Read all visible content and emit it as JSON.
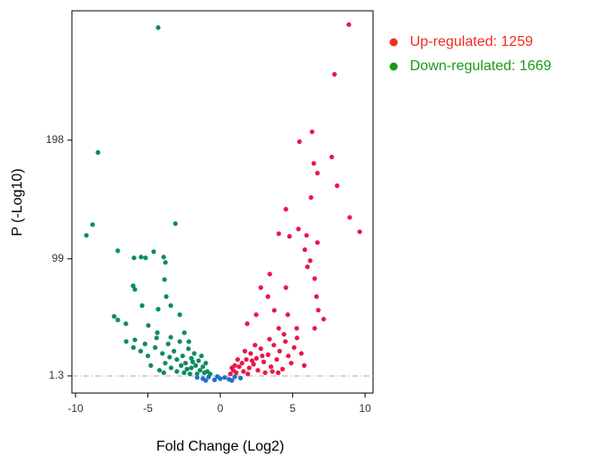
{
  "chart_data": {
    "type": "scatter",
    "x_label": "Fold Change (Log2)",
    "y_label": "P (-Log10)",
    "xlim": [
      -10.25,
      10.55
    ],
    "ylim": [
      -13,
      306
    ],
    "xticks": [
      -10,
      -5,
      0,
      5,
      10
    ],
    "yticks": [
      1.3,
      99,
      198
    ],
    "threshold": 1.3,
    "legend": "top-right",
    "series": [
      {
        "name": "Up-regulated: 1259",
        "color": "#e8174a",
        "legend_color": "#f22c1e",
        "x": [
          8.88,
          7.89,
          6.34,
          5.47,
          6.46,
          7.7,
          6.71,
          8.07,
          8.94,
          9.63,
          6.27,
          4.53,
          4.78,
          4.04,
          5.4,
          5.96,
          6.71,
          5.84,
          6.21,
          6.02,
          3.42,
          2.8,
          3.29,
          3.73,
          4.53,
          6.52,
          6.65,
          6.77,
          7.14,
          6.52,
          5.28,
          4.66,
          4.04,
          2.48,
          1.86,
          0.7,
          0.9,
          1.1,
          1.3,
          1.5,
          1.6,
          1.8,
          2,
          2.1,
          2.3,
          2.5,
          2.6,
          2.8,
          3,
          3.1,
          3.3,
          3.5,
          3.7,
          3.9,
          4.1,
          4.3,
          4.5,
          4.7,
          4.9,
          5.1,
          5.3,
          5.6,
          1.2,
          1.9,
          2.4,
          2.9,
          3.4,
          4,
          1,
          1.7,
          5.8,
          4.4,
          2.2,
          3.6,
          0.8
        ],
        "y": [
          294.5,
          253,
          205,
          196.8,
          178.7,
          184,
          170.5,
          160,
          133.6,
          121.6,
          150.2,
          140.4,
          117.8,
          120,
          123.9,
          118.6,
          112.6,
          106.6,
          97.5,
          92.3,
          86.3,
          75,
          67.5,
          56,
          75,
          82.5,
          67.5,
          56.2,
          48.7,
          41,
          41,
          52.4,
          41,
          52.4,
          44.9,
          3,
          6,
          4,
          9,
          12,
          5,
          15,
          8,
          20,
          11,
          16,
          6,
          24,
          13,
          4,
          19,
          9,
          27,
          15,
          22,
          7,
          30,
          18,
          12,
          25,
          33,
          20,
          15,
          3,
          27,
          18,
          32,
          4,
          10,
          22,
          10,
          36,
          14,
          5,
          8
        ]
      },
      {
        "name": "Down-regulated: 1669",
        "color": "#0c8c5c",
        "legend_color": "#1a9a1a",
        "x": [
          -4.29,
          -8.45,
          -8.82,
          -9.25,
          -3.1,
          -7.08,
          -4.6,
          -5.96,
          -5.47,
          -5.16,
          -3.91,
          -3.79,
          -6.02,
          -5.9,
          -3.85,
          -7.33,
          -7.08,
          -6.52,
          -5.4,
          -4.29,
          -3.73,
          -3.42,
          -2.8,
          -4.97,
          -5.9,
          -4.35,
          -3.42,
          -2.48,
          -2.17,
          -4.5,
          -4,
          -3.6,
          -3.2,
          -3,
          -2.8,
          -2.6,
          -2.4,
          -2.2,
          -2,
          -2,
          -1.8,
          -1.7,
          -1.5,
          -1.4,
          -1.2,
          -1.1,
          -1,
          -0.9,
          -0.7,
          -3.8,
          -3.4,
          -5,
          -5.5,
          -4.8,
          -6,
          -6.5,
          -3,
          -2.5,
          -4.2,
          -1.6,
          -2.3,
          -3.5,
          -4.4,
          -2.7,
          -1.9,
          -1.3,
          -5.2,
          -3.9,
          -2.1
        ],
        "y": [
          292,
          187.8,
          127.6,
          118.6,
          128.4,
          105.8,
          105,
          99.8,
          100.5,
          99.8,
          100.5,
          96,
          76.5,
          73.5,
          81.7,
          51,
          48,
          44.9,
          60,
          57,
          67.5,
          60,
          52.4,
          43.4,
          31.4,
          37.4,
          33.6,
          37.4,
          29.9,
          25,
          20,
          28,
          22,
          15,
          30,
          18,
          12,
          24,
          8,
          16,
          20,
          10,
          14,
          6,
          9,
          4,
          12,
          5,
          3,
          12,
          8,
          18,
          22,
          10,
          25,
          30,
          5,
          4,
          6,
          3,
          7,
          17,
          33,
          10,
          13,
          18,
          28,
          4,
          3
        ]
      },
      {
        "color": "#1f6fd1",
        "x": [
          -1.6,
          -1.2,
          -0.8,
          -0.4,
          0,
          0.3,
          0.6,
          1,
          1.4,
          -0.2,
          0.8,
          -1
        ],
        "y": [
          0,
          -1,
          0.5,
          -2,
          -1,
          0,
          -1.5,
          0.5,
          -0.5,
          0.8,
          -2.5,
          -2.5
        ]
      }
    ]
  }
}
